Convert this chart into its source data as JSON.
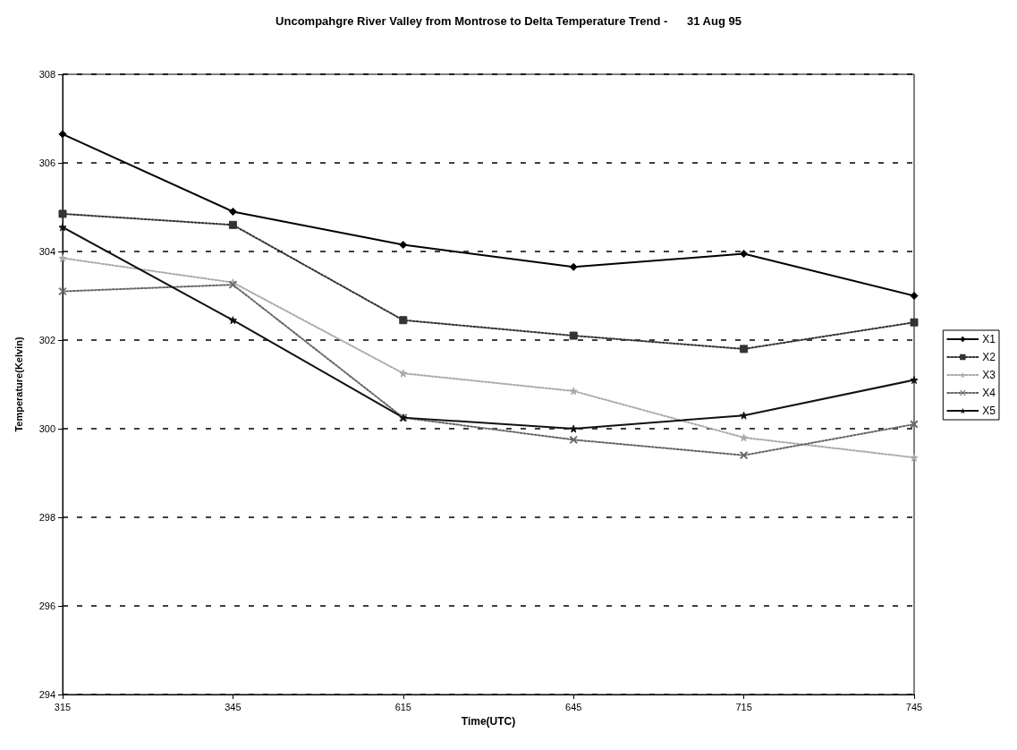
{
  "chart_data": {
    "type": "line",
    "title": "Uncompahgre River Valley from Montrose to Delta Temperature Trend -      31 Aug 95",
    "xlabel": "Time(UTC)",
    "ylabel": "Temperature(Kelvin)",
    "categories": [
      "315",
      "345",
      "615",
      "645",
      "715",
      "745"
    ],
    "ylim": [
      294,
      308
    ],
    "yticks": [
      294,
      296,
      298,
      300,
      302,
      304,
      306,
      308
    ],
    "grid": "y",
    "legend": "right",
    "series": [
      {
        "name": "X1",
        "color": "#000000",
        "marker": "diamond",
        "line_style": "solid",
        "values": [
          306.65,
          304.9,
          304.15,
          303.65,
          303.95,
          303.0
        ]
      },
      {
        "name": "X2",
        "color": "#333333",
        "marker": "square",
        "line_style": "dotted",
        "values": [
          304.85,
          304.6,
          302.45,
          302.1,
          301.8,
          302.4
        ]
      },
      {
        "name": "X3",
        "color": "#aaaaaa",
        "marker": "star",
        "line_style": "dotted",
        "values": [
          303.85,
          303.3,
          301.25,
          300.85,
          299.8,
          299.35
        ]
      },
      {
        "name": "X4",
        "color": "#666666",
        "marker": "cross",
        "line_style": "dotted",
        "values": [
          303.1,
          303.25,
          300.25,
          299.75,
          299.4,
          300.1
        ]
      },
      {
        "name": "X5",
        "color": "#111111",
        "marker": "star",
        "line_style": "solid",
        "values": [
          304.55,
          302.45,
          300.25,
          300.0,
          300.3,
          301.1
        ]
      }
    ]
  }
}
